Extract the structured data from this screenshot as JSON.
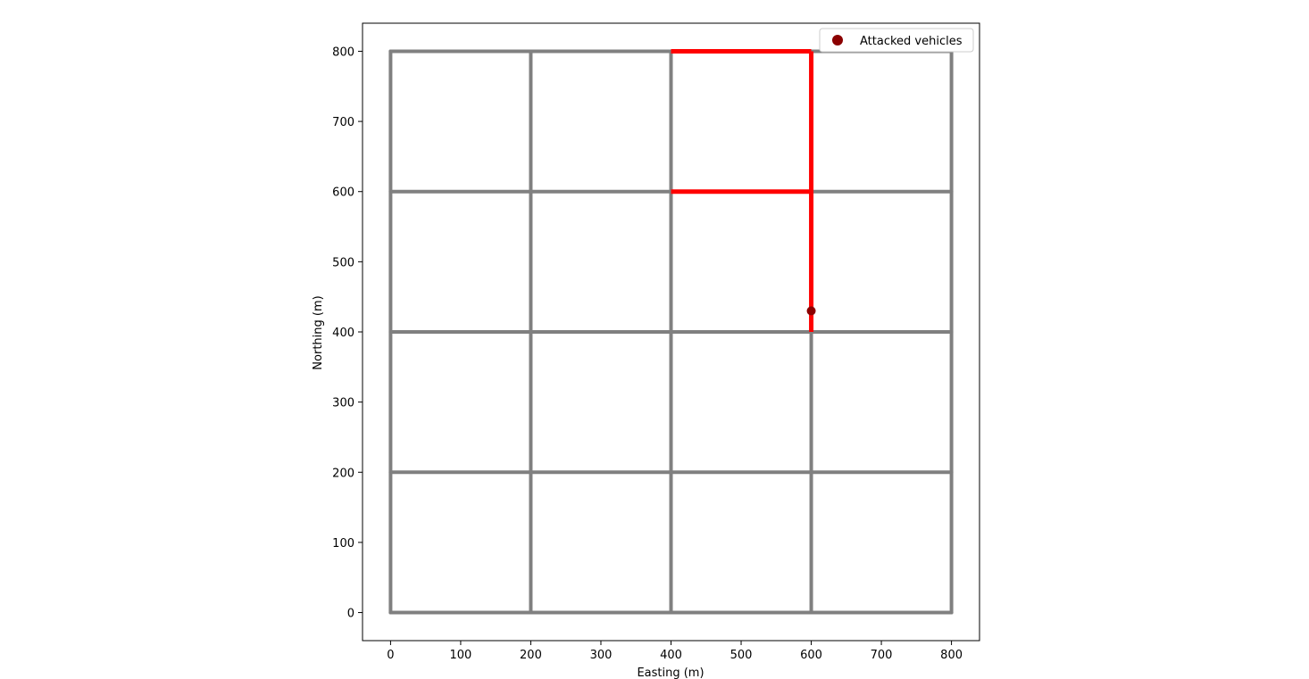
{
  "chart_data": {
    "type": "line",
    "title": "",
    "xlabel": "Easting (m)",
    "ylabel": "Northing (m)",
    "xlim": [
      -40,
      840
    ],
    "ylim": [
      -40,
      840
    ],
    "xticks": [
      0,
      100,
      200,
      300,
      400,
      500,
      600,
      700,
      800
    ],
    "yticks": [
      0,
      100,
      200,
      300,
      400,
      500,
      600,
      700,
      800
    ],
    "grid": false,
    "legend_position": "top-right",
    "colors": {
      "road": "#808080",
      "attacked_route": "#ff0000",
      "attacked_vehicle": "#8b0000"
    },
    "road_network": {
      "horizontal_roads_y": [
        0,
        200,
        400,
        600,
        800
      ],
      "vertical_roads_x": [
        0,
        200,
        400,
        600,
        800
      ],
      "extent": [
        0,
        800
      ]
    },
    "attacked_route": [
      {
        "from": [
          400,
          800
        ],
        "to": [
          600,
          800
        ]
      },
      {
        "from": [
          600,
          800
        ],
        "to": [
          600,
          400
        ]
      },
      {
        "from": [
          400,
          600
        ],
        "to": [
          600,
          600
        ]
      }
    ],
    "series": [
      {
        "name": "Attacked vehicles",
        "points": [
          [
            600,
            430
          ]
        ]
      }
    ]
  }
}
